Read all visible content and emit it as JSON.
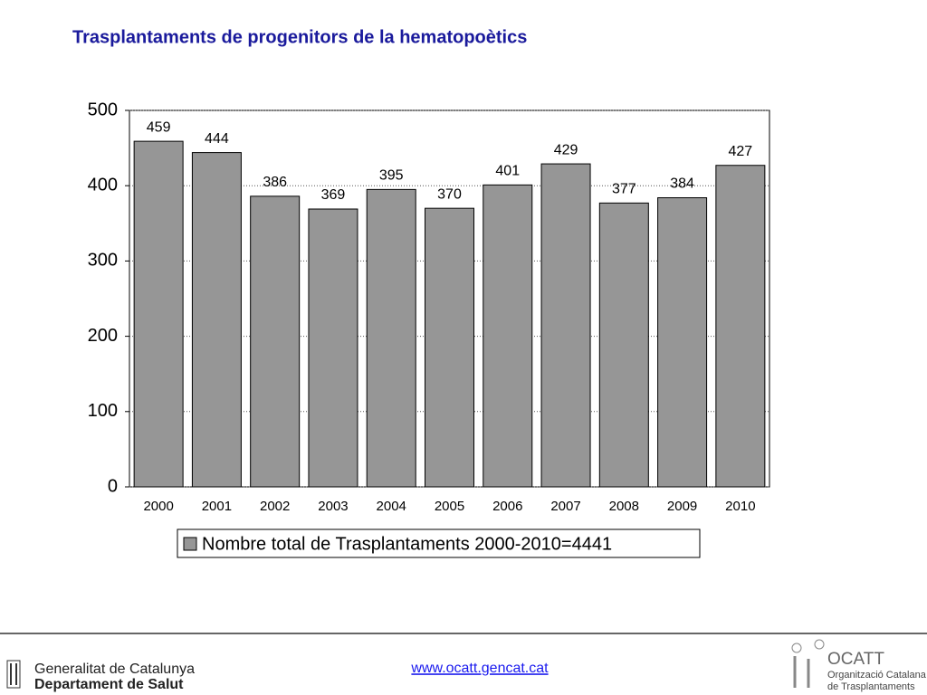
{
  "chart_data": {
    "type": "bar",
    "title": "Trasplantaments de progenitors de la hematopoètics",
    "categories": [
      "2000",
      "2001",
      "2002",
      "2003",
      "2004",
      "2005",
      "2006",
      "2007",
      "2008",
      "2009",
      "2010"
    ],
    "series": [
      {
        "name": "Nombre total de Trasplantaments 2000-2010=4441",
        "color": "#969696",
        "values": [
          459,
          444,
          386,
          369,
          395,
          370,
          401,
          429,
          377,
          384,
          427
        ]
      }
    ],
    "ylim": [
      0,
      500
    ],
    "yticks": [
      0,
      100,
      200,
      300,
      400,
      500
    ],
    "grid": true
  },
  "footer": {
    "org_line1": "Generalitat de Catalunya",
    "org_line2": "Departament de Salut",
    "url": "www.ocatt.gencat.cat",
    "logo_title": "OCATT",
    "logo_line1": "Organització Catalana",
    "logo_line2": "de Trasplantaments"
  }
}
